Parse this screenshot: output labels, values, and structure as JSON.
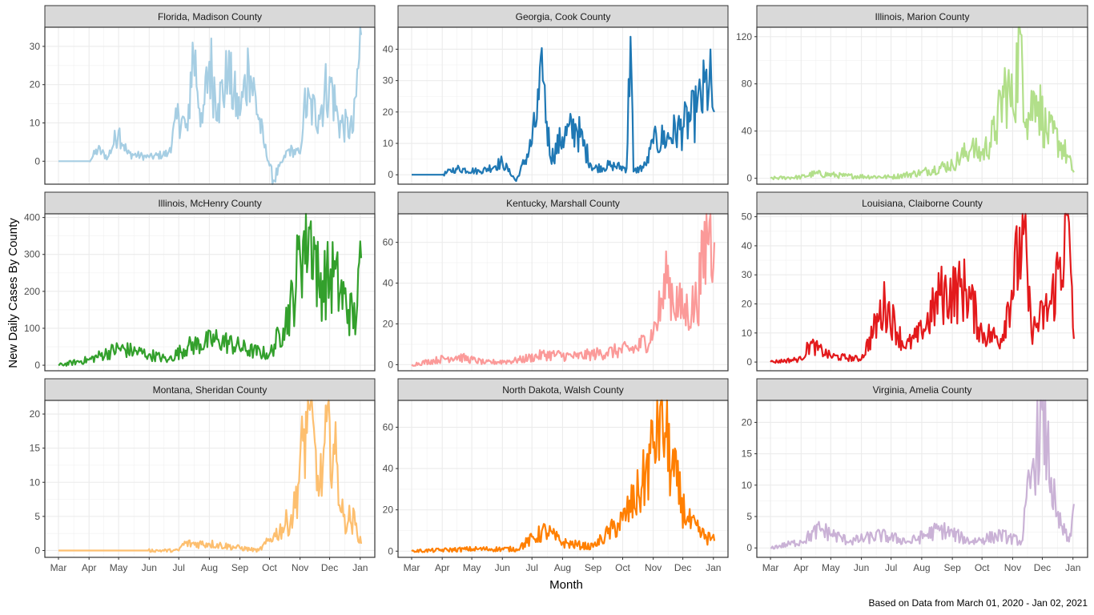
{
  "chart_data": {
    "type": "line",
    "xlabel": "Month",
    "ylabel": "New Daily Cases By County",
    "caption": "Based on Data from March 01, 2020 - Jan 02, 2021",
    "x_ticks": [
      "Mar",
      "Apr",
      "May",
      "Jun",
      "Jul",
      "Aug",
      "Sep",
      "Oct",
      "Nov",
      "Dec",
      "Jan"
    ],
    "x_range": [
      "2020-03-01",
      "2021-01-02"
    ],
    "grid": true,
    "legend": "none",
    "panels": [
      {
        "title": "Florida, Madison County",
        "color": "#a6cee3",
        "ylim": [
          -6,
          35
        ],
        "yticks": [
          0,
          10,
          20,
          30
        ],
        "series": [
          {
            "date": "2020-03-01",
            "value": 0
          },
          {
            "date": "2020-04-01",
            "value": 0
          },
          {
            "date": "2020-04-10",
            "value": 3
          },
          {
            "date": "2020-04-20",
            "value": 1
          },
          {
            "date": "2020-05-01",
            "value": 8
          },
          {
            "date": "2020-05-10",
            "value": 2
          },
          {
            "date": "2020-06-01",
            "value": 1
          },
          {
            "date": "2020-06-20",
            "value": 2
          },
          {
            "date": "2020-07-01",
            "value": 12
          },
          {
            "date": "2020-07-10",
            "value": 8
          },
          {
            "date": "2020-07-15",
            "value": 31
          },
          {
            "date": "2020-07-25",
            "value": 10
          },
          {
            "date": "2020-08-01",
            "value": 26
          },
          {
            "date": "2020-08-10",
            "value": 15
          },
          {
            "date": "2020-08-20",
            "value": 22
          },
          {
            "date": "2020-09-01",
            "value": 12
          },
          {
            "date": "2020-09-10",
            "value": 25
          },
          {
            "date": "2020-09-25",
            "value": 5
          },
          {
            "date": "2020-10-05",
            "value": -5
          },
          {
            "date": "2020-10-20",
            "value": 3
          },
          {
            "date": "2020-11-01",
            "value": 2
          },
          {
            "date": "2020-11-05",
            "value": 15
          },
          {
            "date": "2020-11-20",
            "value": 12
          },
          {
            "date": "2020-12-01",
            "value": 22
          },
          {
            "date": "2020-12-10",
            "value": 10
          },
          {
            "date": "2020-12-25",
            "value": 8
          },
          {
            "date": "2021-01-02",
            "value": 33
          }
        ]
      },
      {
        "title": "Georgia, Cook County",
        "color": "#1f78b4",
        "ylim": [
          -3,
          47
        ],
        "yticks": [
          0,
          10,
          20,
          30,
          40
        ],
        "series": [
          {
            "date": "2020-03-01",
            "value": 0
          },
          {
            "date": "2020-04-01",
            "value": 0
          },
          {
            "date": "2020-04-15",
            "value": 2
          },
          {
            "date": "2020-05-10",
            "value": 1
          },
          {
            "date": "2020-06-01",
            "value": 4
          },
          {
            "date": "2020-06-15",
            "value": -2
          },
          {
            "date": "2020-07-01",
            "value": 10
          },
          {
            "date": "2020-07-12",
            "value": 30
          },
          {
            "date": "2020-07-20",
            "value": 5
          },
          {
            "date": "2020-08-01",
            "value": 12
          },
          {
            "date": "2020-08-15",
            "value": 15
          },
          {
            "date": "2020-09-01",
            "value": 2
          },
          {
            "date": "2020-09-20",
            "value": 3
          },
          {
            "date": "2020-10-05",
            "value": 2
          },
          {
            "date": "2020-10-09",
            "value": 44
          },
          {
            "date": "2020-10-12",
            "value": 1
          },
          {
            "date": "2020-10-25",
            "value": 3
          },
          {
            "date": "2020-11-01",
            "value": 10
          },
          {
            "date": "2020-11-15",
            "value": 12
          },
          {
            "date": "2020-12-01",
            "value": 15
          },
          {
            "date": "2020-12-15",
            "value": 20
          },
          {
            "date": "2020-12-28",
            "value": 30
          },
          {
            "date": "2021-01-02",
            "value": 20
          }
        ]
      },
      {
        "title": "Illinois, Marion County",
        "color": "#b2df8a",
        "ylim": [
          -5,
          128
        ],
        "yticks": [
          0,
          40,
          80,
          120
        ],
        "series": [
          {
            "date": "2020-03-01",
            "value": 0
          },
          {
            "date": "2020-04-01",
            "value": 1
          },
          {
            "date": "2020-04-15",
            "value": 4
          },
          {
            "date": "2020-05-15",
            "value": 2
          },
          {
            "date": "2020-07-01",
            "value": 1
          },
          {
            "date": "2020-08-01",
            "value": 5
          },
          {
            "date": "2020-09-01",
            "value": 12
          },
          {
            "date": "2020-09-20",
            "value": 25
          },
          {
            "date": "2020-10-01",
            "value": 20
          },
          {
            "date": "2020-10-15",
            "value": 40
          },
          {
            "date": "2020-10-25",
            "value": 80
          },
          {
            "date": "2020-11-01",
            "value": 60
          },
          {
            "date": "2020-11-09",
            "value": 122
          },
          {
            "date": "2020-11-15",
            "value": 50
          },
          {
            "date": "2020-11-25",
            "value": 70
          },
          {
            "date": "2020-12-05",
            "value": 40
          },
          {
            "date": "2020-12-20",
            "value": 30
          },
          {
            "date": "2021-01-02",
            "value": 5
          }
        ]
      },
      {
        "title": "Illinois, McHenry County",
        "color": "#33a02c",
        "ylim": [
          -15,
          410
        ],
        "yticks": [
          0,
          100,
          200,
          300,
          400
        ],
        "series": [
          {
            "date": "2020-03-01",
            "value": 0
          },
          {
            "date": "2020-04-01",
            "value": 15
          },
          {
            "date": "2020-05-01",
            "value": 45
          },
          {
            "date": "2020-06-01",
            "value": 30
          },
          {
            "date": "2020-06-20",
            "value": 15
          },
          {
            "date": "2020-07-10",
            "value": 50
          },
          {
            "date": "2020-08-10",
            "value": 70
          },
          {
            "date": "2020-09-10",
            "value": 40
          },
          {
            "date": "2020-10-01",
            "value": 30
          },
          {
            "date": "2020-10-15",
            "value": 100
          },
          {
            "date": "2020-10-25",
            "value": 180
          },
          {
            "date": "2020-11-01",
            "value": 300
          },
          {
            "date": "2020-11-12",
            "value": 390
          },
          {
            "date": "2020-11-20",
            "value": 220
          },
          {
            "date": "2020-12-05",
            "value": 240
          },
          {
            "date": "2020-12-20",
            "value": 150
          },
          {
            "date": "2020-12-28",
            "value": 120
          },
          {
            "date": "2021-01-02",
            "value": 290
          }
        ]
      },
      {
        "title": "Kentucky, Marshall County",
        "color": "#fb9a99",
        "ylim": [
          -3,
          74
        ],
        "yticks": [
          0,
          20,
          40,
          60
        ],
        "series": [
          {
            "date": "2020-03-01",
            "value": 0
          },
          {
            "date": "2020-04-15",
            "value": 4
          },
          {
            "date": "2020-05-15",
            "value": 1
          },
          {
            "date": "2020-06-15",
            "value": 2
          },
          {
            "date": "2020-07-15",
            "value": 5
          },
          {
            "date": "2020-08-15",
            "value": 4
          },
          {
            "date": "2020-09-15",
            "value": 6
          },
          {
            "date": "2020-10-15",
            "value": 8
          },
          {
            "date": "2020-11-01",
            "value": 15
          },
          {
            "date": "2020-11-15",
            "value": 40
          },
          {
            "date": "2020-12-01",
            "value": 25
          },
          {
            "date": "2020-12-15",
            "value": 30
          },
          {
            "date": "2020-12-28",
            "value": 70
          },
          {
            "date": "2021-01-02",
            "value": 60
          }
        ]
      },
      {
        "title": "Louisiana, Claiborne County",
        "color": "#e31a1c",
        "ylim": [
          -3,
          51
        ],
        "yticks": [
          0,
          10,
          20,
          30,
          40,
          50
        ],
        "series": [
          {
            "date": "2020-03-01",
            "value": 0
          },
          {
            "date": "2020-04-01",
            "value": 1
          },
          {
            "date": "2020-04-10",
            "value": 6
          },
          {
            "date": "2020-05-01",
            "value": 2
          },
          {
            "date": "2020-06-01",
            "value": 1
          },
          {
            "date": "2020-06-25",
            "value": 20
          },
          {
            "date": "2020-07-15",
            "value": 5
          },
          {
            "date": "2020-08-01",
            "value": 10
          },
          {
            "date": "2020-08-20",
            "value": 23
          },
          {
            "date": "2020-09-15",
            "value": 25
          },
          {
            "date": "2020-10-01",
            "value": 10
          },
          {
            "date": "2020-10-20",
            "value": 8
          },
          {
            "date": "2020-11-12",
            "value": 44
          },
          {
            "date": "2020-11-20",
            "value": 10
          },
          {
            "date": "2020-12-10",
            "value": 20
          },
          {
            "date": "2020-12-28",
            "value": 48
          },
          {
            "date": "2021-01-02",
            "value": 8
          }
        ]
      },
      {
        "title": "Montana, Sheridan County",
        "color": "#fdbf6f",
        "ylim": [
          -1,
          22
        ],
        "yticks": [
          0,
          5,
          10,
          15,
          20
        ],
        "series": [
          {
            "date": "2020-03-01",
            "value": 0
          },
          {
            "date": "2020-07-01",
            "value": 0
          },
          {
            "date": "2020-07-05",
            "value": 1
          },
          {
            "date": "2020-08-01",
            "value": 1
          },
          {
            "date": "2020-09-20",
            "value": 0
          },
          {
            "date": "2020-10-05",
            "value": 2
          },
          {
            "date": "2020-10-25",
            "value": 5
          },
          {
            "date": "2020-11-10",
            "value": 21
          },
          {
            "date": "2020-11-20",
            "value": 8
          },
          {
            "date": "2020-12-01",
            "value": 19
          },
          {
            "date": "2020-12-15",
            "value": 5
          },
          {
            "date": "2020-12-28",
            "value": 4
          },
          {
            "date": "2021-01-02",
            "value": 1
          }
        ]
      },
      {
        "title": "North Dakota, Walsh County",
        "color": "#ff7f00",
        "ylim": [
          -3,
          73
        ],
        "yticks": [
          0,
          20,
          40,
          60
        ],
        "series": [
          {
            "date": "2020-03-01",
            "value": 0
          },
          {
            "date": "2020-05-01",
            "value": 1
          },
          {
            "date": "2020-06-15",
            "value": 1
          },
          {
            "date": "2020-07-15",
            "value": 10
          },
          {
            "date": "2020-08-01",
            "value": 4
          },
          {
            "date": "2020-09-01",
            "value": 2
          },
          {
            "date": "2020-10-01",
            "value": 15
          },
          {
            "date": "2020-10-20",
            "value": 30
          },
          {
            "date": "2020-11-01",
            "value": 50
          },
          {
            "date": "2020-11-08",
            "value": 70
          },
          {
            "date": "2020-11-20",
            "value": 40
          },
          {
            "date": "2020-12-05",
            "value": 15
          },
          {
            "date": "2020-12-20",
            "value": 8
          },
          {
            "date": "2021-01-02",
            "value": 5
          }
        ]
      },
      {
        "title": "Virginia, Amelia County",
        "color": "#cab2d6",
        "ylim": [
          -1.5,
          23.5
        ],
        "yticks": [
          0,
          5,
          10,
          15,
          20
        ],
        "series": [
          {
            "date": "2020-03-01",
            "value": 0
          },
          {
            "date": "2020-04-01",
            "value": 1
          },
          {
            "date": "2020-04-20",
            "value": 3
          },
          {
            "date": "2020-05-20",
            "value": 1
          },
          {
            "date": "2020-06-20",
            "value": 2
          },
          {
            "date": "2020-07-20",
            "value": 1
          },
          {
            "date": "2020-08-20",
            "value": 3
          },
          {
            "date": "2020-09-20",
            "value": 1
          },
          {
            "date": "2020-10-20",
            "value": 2
          },
          {
            "date": "2020-11-10",
            "value": 1
          },
          {
            "date": "2020-11-20",
            "value": 12
          },
          {
            "date": "2020-12-01",
            "value": 22
          },
          {
            "date": "2020-12-15",
            "value": 5
          },
          {
            "date": "2020-12-28",
            "value": 1
          },
          {
            "date": "2021-01-02",
            "value": 7
          }
        ]
      }
    ]
  }
}
